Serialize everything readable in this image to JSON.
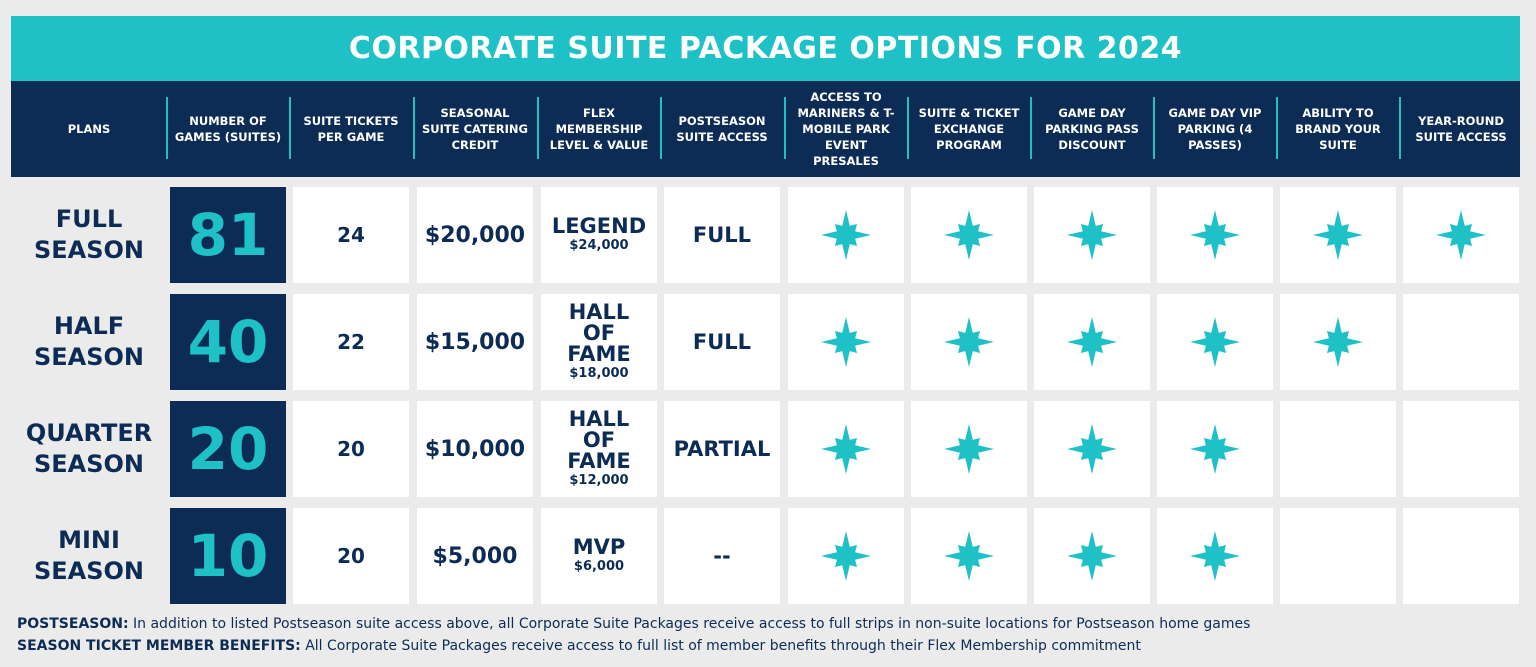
{
  "title": "CORPORATE SUITE PACKAGE OPTIONS FOR 2024",
  "colors": {
    "navy": "#0c2c56",
    "teal": "#1ec1c6",
    "background": "#ebebeb"
  },
  "headers": [
    "PLANS",
    "NUMBER OF GAMES (SUITES)",
    "SUITE TICKETS PER GAME",
    "SEASONAL SUITE CATERING CREDIT",
    "FLEX MEMBERSHIP LEVEL & VALUE",
    "POSTSEASON SUITE ACCESS",
    "ACCESS TO MARINERS & T-MOBILE PARK EVENT PRESALES",
    "SUITE & TICKET EXCHANGE PROGRAM",
    "GAME DAY PARKING PASS DISCOUNT",
    "GAME DAY VIP PARKING (4 PASSES)",
    "ABILITY TO BRAND YOUR SUITE",
    "YEAR-ROUND SUITE ACCESS"
  ],
  "plans": [
    {
      "name": "FULL SEASON",
      "games": "81",
      "tickets": "24",
      "catering": "$20,000",
      "flex_level": "LEGEND",
      "flex_value": "$24,000",
      "postseason": "FULL",
      "benefits": [
        true,
        true,
        true,
        true,
        true,
        true
      ]
    },
    {
      "name": "HALF SEASON",
      "games": "40",
      "tickets": "22",
      "catering": "$15,000",
      "flex_level": "HALL OF FAME",
      "flex_value": "$18,000",
      "postseason": "FULL",
      "benefits": [
        true,
        true,
        true,
        true,
        true,
        false
      ]
    },
    {
      "name": "QUARTER SEASON",
      "games": "20",
      "tickets": "20",
      "catering": "$10,000",
      "flex_level": "HALL OF FAME",
      "flex_value": "$12,000",
      "postseason": "PARTIAL",
      "benefits": [
        true,
        true,
        true,
        true,
        false,
        false
      ]
    },
    {
      "name": "MINI SEASON",
      "games": "10",
      "tickets": "20",
      "catering": "$5,000",
      "flex_level": "MVP",
      "flex_value": "$6,000",
      "postseason": "--",
      "benefits": [
        true,
        true,
        true,
        true,
        false,
        false
      ]
    }
  ],
  "footnotes": [
    {
      "label": "POSTSEASON:",
      "text": " In addition to listed Postseason suite access above, all Corporate Suite Packages receive access to full strips in non-suite locations for Postseason home games"
    },
    {
      "label": "SEASON TICKET MEMBER BENEFITS:",
      "text": " All Corporate Suite Packages receive access to full list of member benefits through their Flex Membership commitment"
    }
  ],
  "icons": {
    "benefit": "compass-star-icon"
  }
}
